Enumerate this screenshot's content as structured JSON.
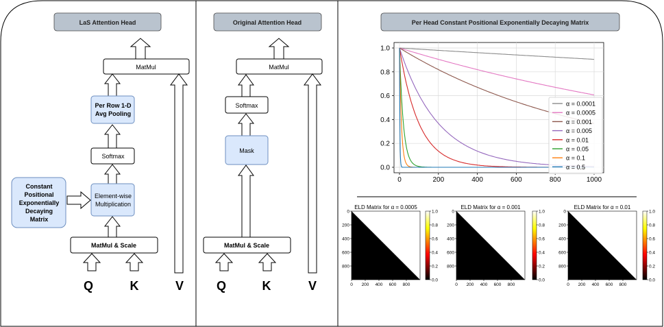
{
  "panels": {
    "las": {
      "title": "LaS Attention Head",
      "matmul_top": "MatMul",
      "pooling": [
        "Per Row 1-D",
        "Avg Pooling"
      ],
      "softmax": "Softmax",
      "elementwise": [
        "Element-wise",
        "Multiplication"
      ],
      "constant_matrix": [
        "Constant",
        "Positional",
        "Exponentially",
        "Decaying",
        "Matrix"
      ],
      "matmul_scale": "MatMul & Scale",
      "inputs": [
        "Q",
        "K",
        "V"
      ]
    },
    "original": {
      "title": "Original Attention Head",
      "matmul_top": "MatMul",
      "softmax": "Softmax",
      "mask": "Mask",
      "matmul_scale": "MatMul & Scale",
      "inputs": [
        "Q",
        "K",
        "V"
      ]
    },
    "matrix": {
      "title": "Per Head Constant Positional Exponentially Decaying Matrix"
    }
  },
  "chart_data": [
    {
      "type": "line",
      "title": "",
      "xlabel": "",
      "ylabel": "",
      "xlim": [
        0,
        1000
      ],
      "ylim": [
        0,
        1.0
      ],
      "xticks": [
        0,
        200,
        400,
        600,
        800,
        1000
      ],
      "yticks": [
        0.0,
        0.2,
        0.4,
        0.6,
        0.8,
        1.0
      ],
      "grid": true,
      "legend_position": "right",
      "function": "exp(-alpha * x)",
      "series": [
        {
          "name": "α = 0.0001",
          "alpha": 0.0001,
          "color": "#8c8c8c"
        },
        {
          "name": "α = 0.0005",
          "alpha": 0.0005,
          "color": "#e377c2"
        },
        {
          "name": "α = 0.001",
          "alpha": 0.001,
          "color": "#8c564b"
        },
        {
          "name": "α = 0.005",
          "alpha": 0.005,
          "color": "#9467bd"
        },
        {
          "name": "α = 0.01",
          "alpha": 0.01,
          "color": "#d62728"
        },
        {
          "name": "α = 0.05",
          "alpha": 0.05,
          "color": "#2ca02c"
        },
        {
          "name": "α = 0.1",
          "alpha": 0.1,
          "color": "#ff7f0e"
        },
        {
          "name": "α = 0.5",
          "alpha": 0.5,
          "color": "#1f77b4"
        }
      ]
    },
    {
      "type": "heatmap",
      "title": "ELD Matrix for α = 0.0005",
      "alpha": 0.0005,
      "size": 1000,
      "xticks": [
        0,
        200,
        400,
        600,
        800
      ],
      "yticks": [
        0,
        200,
        400,
        600,
        800
      ],
      "colorbar_ticks": [
        0.0,
        0.2,
        0.4,
        0.6,
        0.8,
        1.0
      ],
      "colormap": "hot"
    },
    {
      "type": "heatmap",
      "title": "ELD Matrix for α = 0.001",
      "alpha": 0.001,
      "size": 1000,
      "xticks": [
        0,
        200,
        400,
        600,
        800
      ],
      "yticks": [
        0,
        200,
        400,
        600,
        800
      ],
      "colorbar_ticks": [
        0.0,
        0.2,
        0.4,
        0.6,
        0.8,
        1.0
      ],
      "colormap": "hot"
    },
    {
      "type": "heatmap",
      "title": "ELD Matrix for α = 0.01",
      "alpha": 0.01,
      "size": 1000,
      "xticks": [
        0,
        200,
        400,
        600,
        800
      ],
      "yticks": [
        0,
        200,
        400,
        600,
        800
      ],
      "colorbar_ticks": [
        0.0,
        0.2,
        0.4,
        0.6,
        0.8,
        1.0
      ],
      "colormap": "hot"
    }
  ],
  "colors": {
    "title_fill": "#b9c3ce",
    "highlight_fill": "#dae8fc",
    "highlight_stroke": "#6c8ebf",
    "box_stroke": "#000000"
  }
}
